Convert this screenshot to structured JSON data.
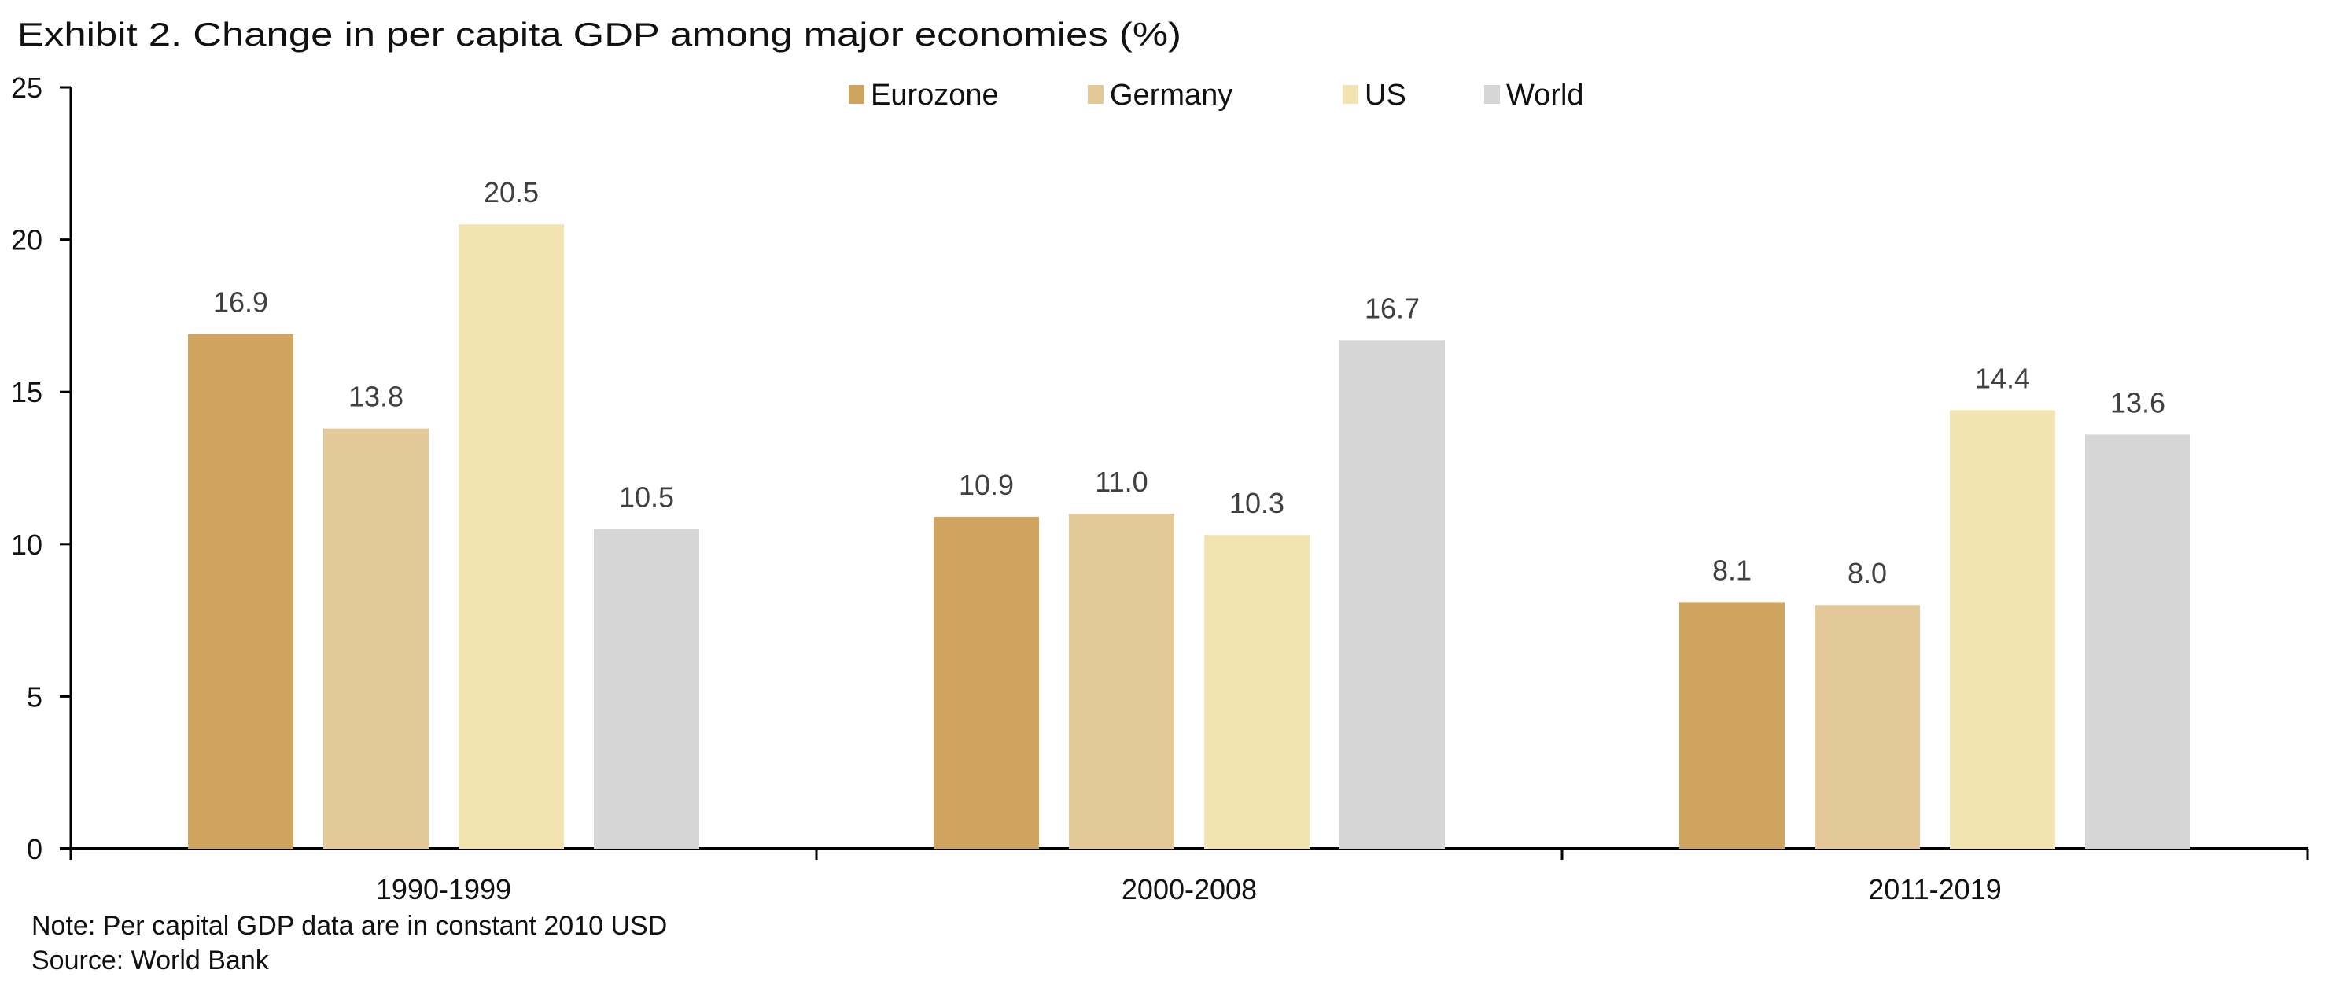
{
  "chart_data": {
    "type": "bar",
    "title": "Exhibit 2. Change in per capita GDP among major economies (%)",
    "xlabel": "",
    "ylabel": "",
    "ylim": [
      0,
      25
    ],
    "yticks": [
      0,
      5,
      10,
      15,
      20,
      25
    ],
    "categories": [
      "1990-1999",
      "2000-2008",
      "2011-2019"
    ],
    "series": [
      {
        "name": "Eurozone",
        "color": "#CFA45E",
        "values": [
          16.9,
          10.9,
          8.1
        ],
        "labels": [
          "16.9",
          "10.9",
          "8.1"
        ]
      },
      {
        "name": "Germany",
        "color": "#E3C997",
        "values": [
          13.8,
          11.0,
          8.0
        ],
        "labels": [
          "13.8",
          "11.0",
          "8.0"
        ]
      },
      {
        "name": "US",
        "color": "#F2E3B0",
        "values": [
          20.5,
          10.3,
          14.4
        ],
        "labels": [
          "20.5",
          "10.3",
          "14.4"
        ]
      },
      {
        "name": "World",
        "color": "#D6D6D6",
        "values": [
          10.5,
          16.7,
          13.6
        ],
        "labels": [
          "10.5",
          "16.7",
          "13.6"
        ]
      }
    ],
    "legend": "top-center",
    "grid": false,
    "notes": [
      "Note: Per capital GDP data are in constant 2010 USD",
      "Source: World Bank"
    ]
  }
}
